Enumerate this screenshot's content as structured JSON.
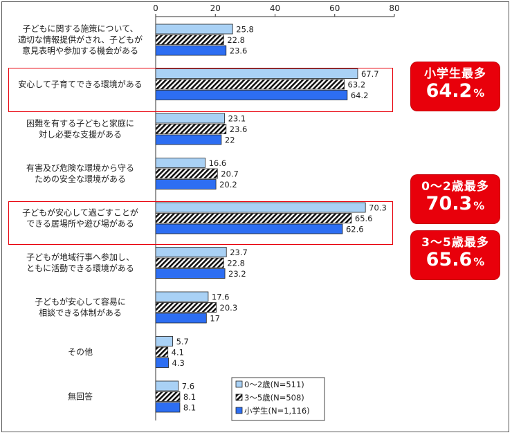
{
  "chart_data": {
    "type": "bar",
    "orientation": "horizontal",
    "xlim": [
      0,
      80
    ],
    "xticks": [
      "0",
      "20",
      "40",
      "60",
      "80"
    ],
    "grid": false,
    "legend_position": "bottom-right",
    "categories": [
      [
        "子どもに関する施策について、",
        "適切な情報提供がされ、子どもが",
        "意見表明や参加する機会がある"
      ],
      [
        "安心して子育てできる環境がある"
      ],
      [
        "困難を有する子どもと家庭に",
        "対し必要な支援がある"
      ],
      [
        "有害及び危険な環境から守る",
        "ための安全な環境がある"
      ],
      [
        "子どもが安心して過ごすことが",
        "できる居場所や遊び場がある"
      ],
      [
        "子どもが地域行事へ参加し、",
        "ともに活動できる環境がある"
      ],
      [
        "子どもが安心して容易に",
        "相談できる体制がある"
      ],
      [
        "その他"
      ],
      [
        "無回答"
      ]
    ],
    "series": [
      {
        "name": "0～2歳(N=511)",
        "color": "#a9d1f5",
        "values": [
          25.8,
          67.7,
          23.1,
          16.6,
          70.3,
          23.7,
          17.6,
          5.7,
          7.6
        ],
        "labels": [
          "25.8",
          "67.7",
          "23.1",
          "16.6",
          "70.3",
          "23.7",
          "17.6",
          "5.7",
          "7.6"
        ]
      },
      {
        "name": "3～5歳(N=508)",
        "color": "#ffffff",
        "pattern": "hatch",
        "values": [
          22.8,
          63.2,
          23.6,
          20.7,
          65.6,
          22.8,
          20.3,
          4.1,
          8.1
        ],
        "labels": [
          "22.8",
          "63.2",
          "23.6",
          "20.7",
          "65.6",
          "22.8",
          "20.3",
          "4.1",
          "8.1"
        ]
      },
      {
        "name": "小学生(N=1,116)",
        "color": "#2d6ef2",
        "values": [
          23.6,
          64.2,
          22,
          20.2,
          62.6,
          23.2,
          17,
          4.3,
          8.1
        ],
        "labels": [
          "23.6",
          "64.2",
          "22",
          "20.2",
          "62.6",
          "23.2",
          "17",
          "4.3",
          "8.1"
        ]
      }
    ]
  },
  "annotations": {
    "highlight_color": "#e8000b",
    "callouts": [
      {
        "title": "小学生最多",
        "value": "64.2",
        "unit": "%"
      },
      {
        "title": "0～2歳最多",
        "value": "70.3",
        "unit": "%"
      },
      {
        "title": "3～5歳最多",
        "value": "65.6",
        "unit": "%"
      }
    ]
  }
}
